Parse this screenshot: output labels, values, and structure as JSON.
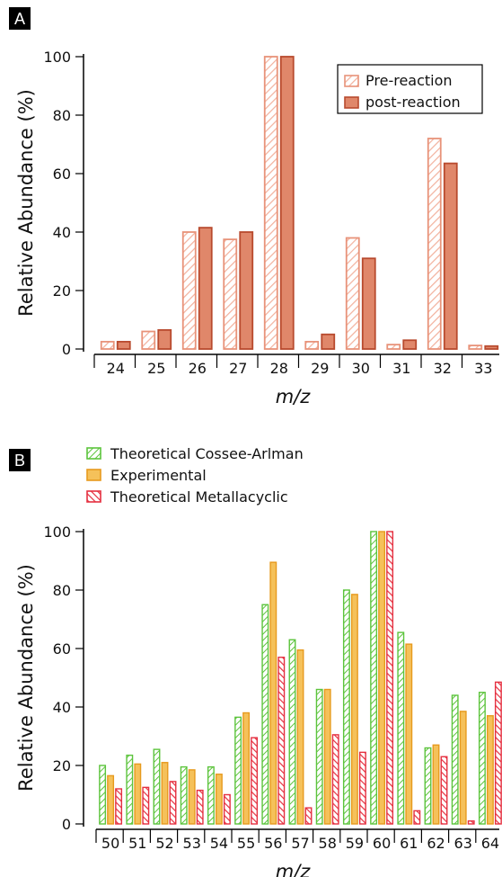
{
  "panels": {
    "a": {
      "tag": "A"
    },
    "b": {
      "tag": "B"
    }
  },
  "colors": {
    "pre_stroke": "#E8937A",
    "post_fill": "#E0876A",
    "post_stroke": "#B84A2E",
    "green": "#5CC43C",
    "orange_fill": "#F5C15A",
    "orange_stroke": "#E79A1E",
    "red": "#E53040"
  },
  "chart_data": [
    {
      "type": "bar",
      "panel": "A",
      "xlabel": "m/z",
      "ylabel": "Relative Abundance (%)",
      "ylim": [
        0,
        100
      ],
      "yticks": [
        0,
        20,
        40,
        60,
        80,
        100
      ],
      "categories": [
        "24",
        "25",
        "26",
        "27",
        "28",
        "29",
        "30",
        "31",
        "32",
        "33"
      ],
      "legend_position": "top-right",
      "series": [
        {
          "name": "Pre-reaction",
          "style": "hatched",
          "values": [
            2.5,
            6,
            40,
            37.5,
            100,
            2.5,
            38,
            1.5,
            72,
            1.2
          ]
        },
        {
          "name": "post-reaction",
          "style": "solid",
          "values": [
            2.5,
            6.5,
            41.5,
            40,
            100,
            5,
            31,
            3,
            63.5,
            1
          ]
        }
      ]
    },
    {
      "type": "bar",
      "panel": "B",
      "xlabel": "m/z",
      "ylabel": "Relative Abundance (%)",
      "ylim": [
        0,
        100
      ],
      "yticks": [
        0,
        20,
        40,
        60,
        80,
        100
      ],
      "categories": [
        "50",
        "51",
        "52",
        "53",
        "54",
        "55",
        "56",
        "57",
        "58",
        "59",
        "60",
        "61",
        "62",
        "63",
        "64"
      ],
      "legend_position": "top-left",
      "series": [
        {
          "name": "Theoretical Cossee-Arlman",
          "style": "hatched-green",
          "values": [
            20,
            23.5,
            25.5,
            19.5,
            19.5,
            36.5,
            75,
            63,
            46,
            80,
            100,
            65.5,
            26,
            44,
            45
          ]
        },
        {
          "name": "Experimental",
          "style": "solid-orange",
          "values": [
            16.5,
            20.5,
            21,
            18.5,
            17,
            38,
            89.5,
            59.5,
            46,
            78.5,
            100,
            61.5,
            27,
            38.5,
            37
          ]
        },
        {
          "name": "Theoretical Metallacyclic",
          "style": "hatched-red",
          "values": [
            12,
            12.5,
            14.5,
            11.5,
            10,
            29.5,
            57,
            5.5,
            30.5,
            24.5,
            100,
            4.5,
            23,
            1,
            48.5
          ]
        }
      ]
    }
  ]
}
